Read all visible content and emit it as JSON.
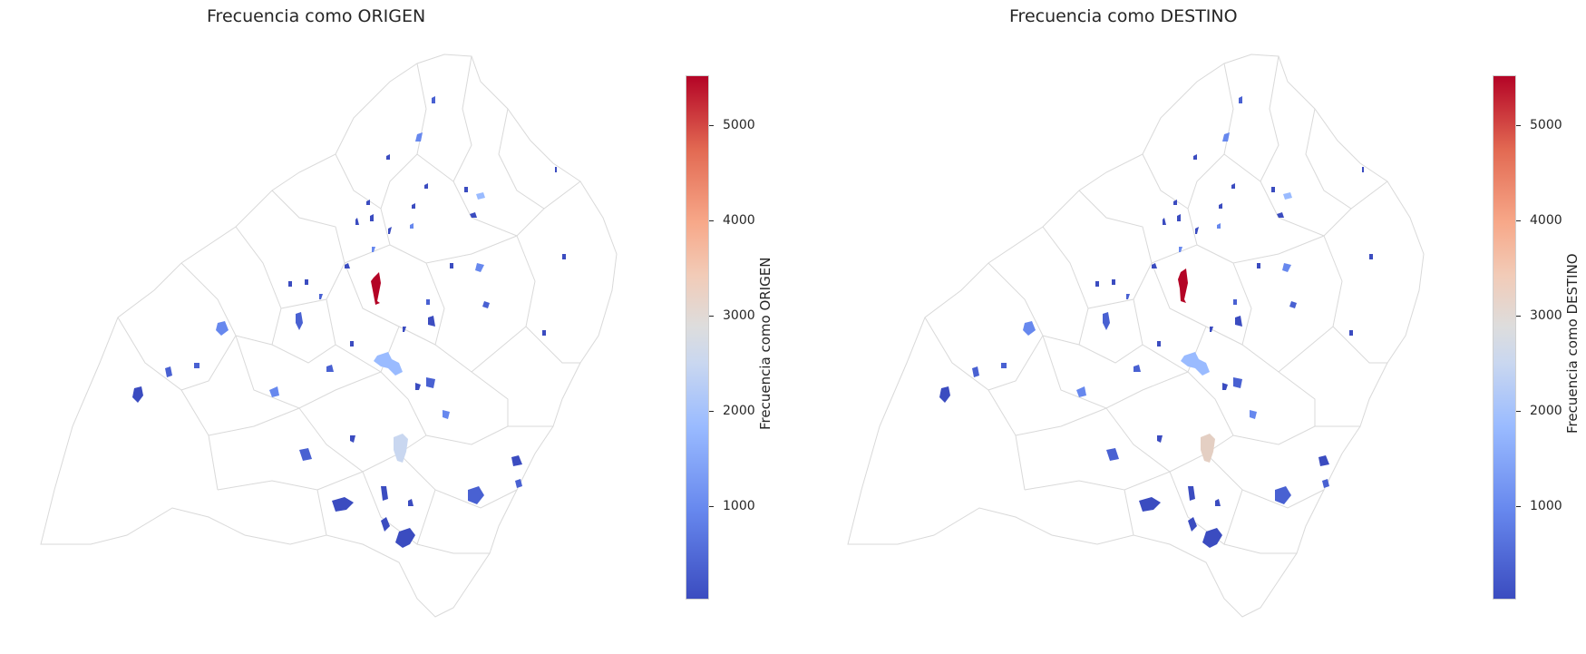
{
  "panels": [
    {
      "title": "Frecuencia como ORIGEN",
      "colorbar_label": "Frecuencia como ORIGEN",
      "colorbar_ticks": [
        "1000",
        "2000",
        "3000",
        "4000",
        "5000"
      ]
    },
    {
      "title": "Frecuencia como DESTINO",
      "colorbar_label": "Frecuencia como DESTINO",
      "colorbar_ticks": [
        "1000",
        "2000",
        "3000",
        "4000",
        "5000"
      ]
    }
  ],
  "colormap": "coolwarm",
  "colorbar_range": [
    0,
    5500
  ],
  "colors": {
    "low": "#3b4cc0",
    "mid": "#dddddd",
    "high": "#b40426",
    "boundary": "#d9d9d9"
  }
}
